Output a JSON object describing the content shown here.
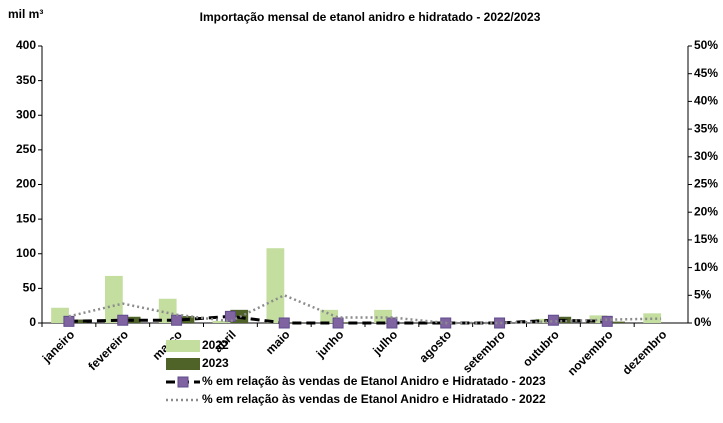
{
  "chart_data": {
    "type": "bar",
    "title": "Importação mensal de etanol  anidro e hidratado - 2022/2023",
    "y_label": "mil m³",
    "categories": [
      "janeiro",
      "fevereiro",
      "março",
      "abril",
      "maio",
      "junho",
      "julho",
      "agosto",
      "setembro",
      "outubro",
      "novembro",
      "dezembro"
    ],
    "series": [
      {
        "name": "2022",
        "color": "#c4dea0",
        "type": "bar",
        "values": [
          22,
          68,
          35,
          3,
          108,
          19,
          19,
          0,
          0,
          6,
          11,
          14
        ]
      },
      {
        "name": "2023",
        "color": "#4f6228",
        "type": "bar",
        "values": [
          5,
          9,
          10,
          19,
          1,
          1,
          0,
          0,
          0,
          9,
          2,
          null
        ]
      },
      {
        "name": "% em relação às vendas de Etanol Anidro e Hidratado - 2023",
        "color": "#000000",
        "marker_color": "#8064a2",
        "type": "line",
        "dash": "dashed",
        "axis": "y2",
        "values": [
          0.3,
          0.5,
          0.5,
          1.2,
          0,
          0,
          0,
          0,
          0,
          0.5,
          0.3,
          null
        ]
      },
      {
        "name": "% em relação às vendas de Etanol Anidro e Hidratado - 2022",
        "color": "#8c8c8c",
        "type": "line",
        "dash": "dotted",
        "axis": "y2",
        "values": [
          1.2,
          3.5,
          1.5,
          0.3,
          5,
          1,
          1,
          0,
          0,
          0.3,
          0.6,
          0.8
        ]
      }
    ],
    "ylim": [
      0,
      400
    ],
    "yticks": [
      0,
      50,
      100,
      150,
      200,
      250,
      300,
      350,
      400
    ],
    "y2lim": [
      0,
      50
    ],
    "y2ticks": [
      {
        "value": 0,
        "label": "0%"
      },
      {
        "value": 5,
        "label": "5%"
      },
      {
        "value": 10,
        "label": "10%"
      },
      {
        "value": 15,
        "label": "15%"
      },
      {
        "value": 20,
        "label": "20%"
      },
      {
        "value": 25,
        "label": "25%"
      },
      {
        "value": 30,
        "label": "30%"
      },
      {
        "value": 35,
        "label": "35%"
      },
      {
        "value": 40,
        "label": "40%"
      },
      {
        "value": 45,
        "label": "45%"
      },
      {
        "value": 50,
        "label": "50%"
      }
    ],
    "legend": "bottom-left"
  }
}
